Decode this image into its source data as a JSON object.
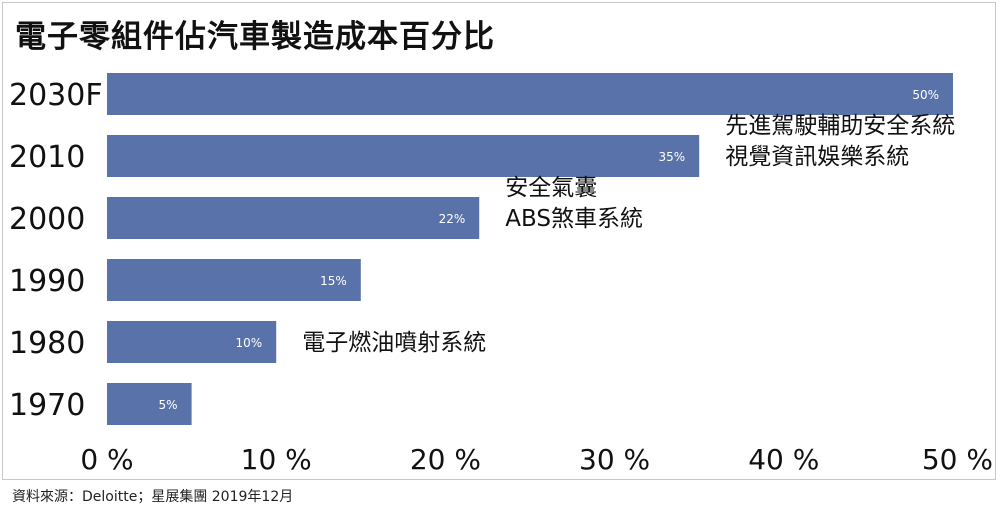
{
  "title": "電子零組件佔汽車製造成本百分比",
  "source": "資料來源：Deloitte；星展集團 2019年12月",
  "colors": {
    "bar": "#5a72aa",
    "bar_label": "#ffffff",
    "text": "#111111"
  },
  "chart_data": {
    "type": "bar",
    "orientation": "horizontal",
    "title": "電子零組件佔汽車製造成本百分比",
    "categories": [
      "2030F",
      "2010",
      "2000",
      "1990",
      "1980",
      "1970"
    ],
    "values": [
      50,
      35,
      22,
      15,
      10,
      5
    ],
    "data_labels": [
      "50%",
      "35%",
      "22%",
      "15%",
      "10%",
      "5%"
    ],
    "xlim": [
      0,
      50
    ],
    "xticks": [
      0,
      10,
      20,
      30,
      40,
      50
    ],
    "xtick_labels": [
      "0 %",
      "10 %",
      "20 %",
      "30 %",
      "40 %",
      "50 %"
    ],
    "grid": false,
    "annotations": [
      {
        "category": "2010",
        "lines": [
          "先進駕駛輔助安全系統",
          "視覺資訊娛樂系統"
        ]
      },
      {
        "category": "2000",
        "lines": [
          "安全氣囊",
          "ABS煞車系統"
        ]
      },
      {
        "category": "1980",
        "lines": [
          "電子燃油噴射系統"
        ]
      }
    ]
  }
}
